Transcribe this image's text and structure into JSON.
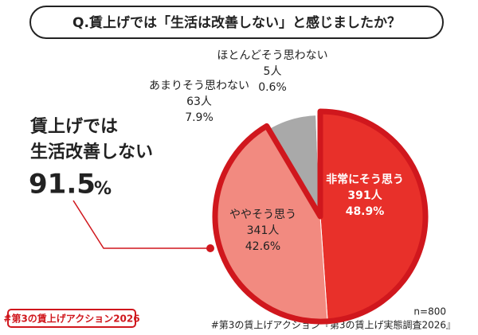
{
  "chart_data": {
    "type": "pie",
    "title": "Q.賃上げでは「生活は改善しない」と感じましたか？",
    "categories": [
      "非常にそう思う",
      "ややそう思う",
      "あまりそう思わない",
      "ほとんどそう思わない"
    ],
    "values": [
      48.9,
      42.6,
      7.9,
      0.6
    ],
    "value_labels": [
      "48.9%",
      "42.6%",
      "7.9%",
      "0.6%"
    ],
    "count_labels": [
      "391人",
      "341人",
      "63人",
      "5人"
    ],
    "colors": [
      "#e8302a",
      "#f28a80",
      "#a9a9a9",
      "#d9d9d9"
    ],
    "callout": {
      "lines": [
        "賃上げでは",
        "生活改善しない"
      ],
      "number": "91.5",
      "unit": "%"
    },
    "note": "n=800",
    "source": "#第3の賃上げアクション『第3の賃上げ実態調査2026』",
    "badge": "#第3の賃上げアクション2026"
  }
}
